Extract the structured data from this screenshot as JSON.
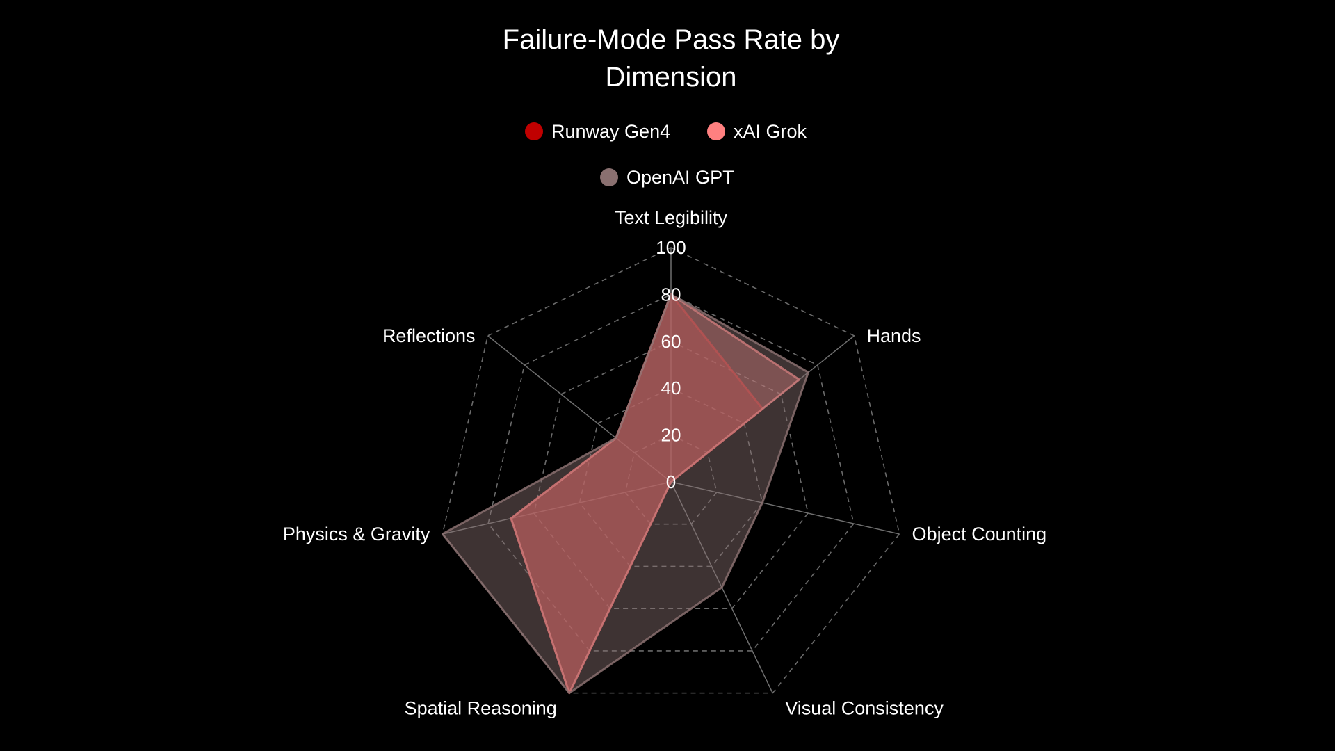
{
  "chart_data": {
    "type": "radar",
    "title_lines": [
      "Failure-Mode Pass Rate by",
      "Dimension"
    ],
    "axes": [
      "Text Legibility",
      "Hands",
      "Object Counting",
      "Visual Consistency",
      "Spatial Reasoning",
      "Physics & Gravity",
      "Reflections"
    ],
    "radial_range": [
      0,
      100
    ],
    "radial_ticks": [
      "0",
      "20",
      "40",
      "60",
      "80",
      "100"
    ],
    "grid": true,
    "legend_position": "top",
    "series": [
      {
        "name": "Runway Gen4",
        "color": "#c00000",
        "values": [
          80,
          50,
          0,
          0,
          100,
          70,
          30
        ]
      },
      {
        "name": "xAI Grok",
        "color": "#ff8080",
        "values": [
          80,
          70,
          0,
          0,
          100,
          70,
          30
        ]
      },
      {
        "name": "OpenAI GPT",
        "color": "#8a7070",
        "values": [
          80,
          75,
          40,
          50,
          100,
          100,
          30
        ]
      }
    ]
  }
}
